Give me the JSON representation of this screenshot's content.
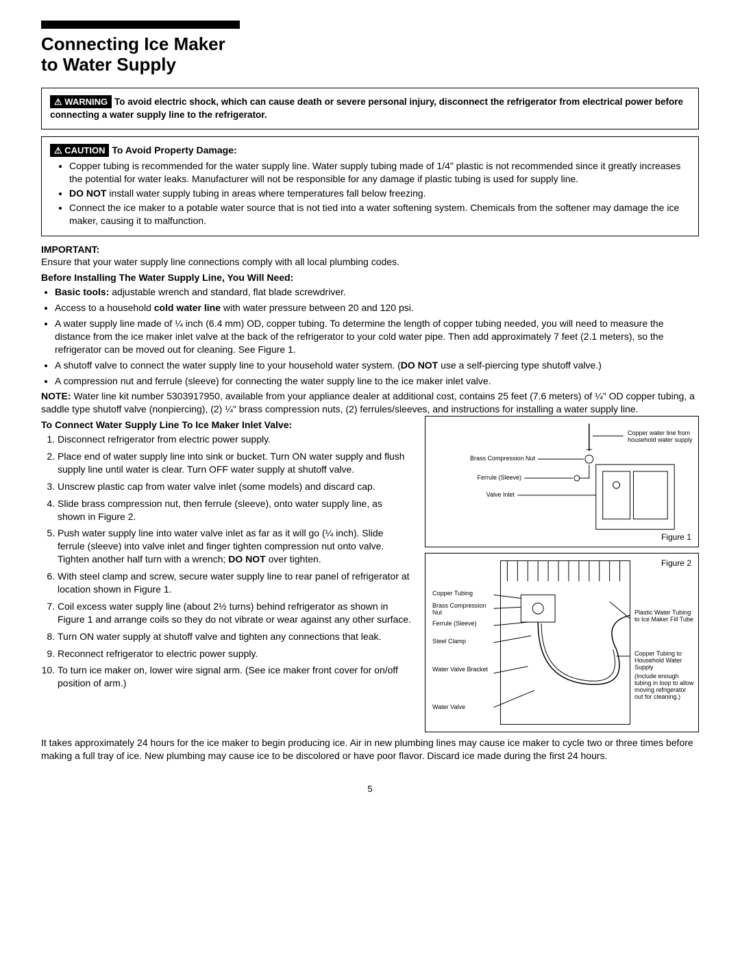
{
  "page_number": "5",
  "title_line1": "Connecting Ice Maker",
  "title_line2": "to Water Supply",
  "warning_badge": "⚠ WARNING",
  "warning_text": "To avoid electric shock, which can cause death or severe personal injury, disconnect the refrigerator from electrical power before connecting a water supply line to the refrigerator.",
  "caution_badge": "⚠ CAUTION",
  "caution_title": "To Avoid Property Damage:",
  "caution_items": [
    "Copper tubing is recommended for the water supply line. Water supply tubing made of 1/4\" plastic is not recommended since it greatly increases the potential for water leaks. Manufacturer will not be responsible for any damage if plastic tubing is used for supply line.",
    "<b>DO NOT</b> install water supply tubing in areas where temperatures fall below freezing.",
    "Connect the ice maker to a potable water source that is not tied into a water softening system. Chemicals from the softener may damage the ice maker, causing it to malfunction."
  ],
  "important_label": "IMPORTANT:",
  "important_text": "Ensure that your water supply line connections comply with all local plumbing codes.",
  "before_label": "Before Installing The Water Supply Line, You Will Need:",
  "before_items": [
    "<b>Basic tools:</b> adjustable wrench and standard, flat blade screwdriver.",
    "Access to a household <b>cold water line</b> with water pressure between 20 and 120 psi.",
    "A water supply line made of ¼ inch (6.4 mm) OD, copper tubing. To determine the length of copper tubing needed, you will need to measure the distance from the ice maker inlet valve at the back of the refrigerator to your cold water pipe. Then add approximately 7 feet (2.1 meters), so the refrigerator can be moved out for cleaning. See Figure 1.",
    "A shutoff valve to connect the water supply line to your household water system. (<b>DO NOT</b> use a self-piercing type shutoff valve.)",
    "A compression nut and ferrule (sleeve) for connecting the water supply line to the ice maker inlet valve."
  ],
  "note_text": "<b>NOTE:</b> Water line kit number 5303917950, available from your appliance dealer at additional cost, contains 25 feet (7.6 meters) of ¼\" OD copper tubing, a saddle type shutoff valve (nonpiercing), (2) ¼\" brass compression nuts, (2) ferrules/sleeves, and instructions for installing a water supply line.",
  "connect_label": "To Connect Water Supply Line To Ice Maker Inlet Valve:",
  "steps": [
    "Disconnect refrigerator from electric power supply.",
    "Place end of water supply line into sink or bucket. Turn ON water supply and flush supply line until water is clear. Turn OFF water supply at shutoff valve.",
    "Unscrew plastic cap from water valve inlet (some models) and discard cap.",
    "Slide brass compression nut, then ferrule (sleeve), onto water supply line, as shown in Figure 2.",
    "Push water supply line into water valve inlet as far as it will go (¼ inch). Slide ferrule (sleeve) into valve inlet and finger tighten compression nut onto valve. Tighten another half turn with a wrench; <b>DO NOT</b> over tighten.",
    "With steel clamp and screw, secure water supply line to rear panel of refrigerator at location shown in Figure 1.",
    "Coil excess water supply line (about 2½ turns) behind refrigerator as shown in Figure 1 and arrange coils so they do not vibrate or wear against any other surface.",
    "Turn ON water supply at shutoff valve and tighten any connections that leak.",
    "Reconnect refrigerator to electric power supply.",
    "To turn ice maker on, lower wire signal arm. (See ice maker front cover for on/off position of arm.)"
  ],
  "closing_text": "It takes approximately 24 hours for the ice maker to begin producing ice. Air in new plumbing lines may cause ice maker to cycle two or three times before making a full tray of ice. New plumbing may cause ice to be discolored or have poor flavor. Discard ice made during the first 24 hours.",
  "fig1_caption": "Figure 1",
  "fig2_caption": "Figure 2",
  "fig1_labels": {
    "copper_line": "Copper water line from household water supply",
    "brass_nut": "Brass Compression Nut",
    "ferrule": "Ferrule (Sleeve)",
    "valve_inlet": "Valve Inlet"
  },
  "fig2_labels": {
    "copper_tubing": "Copper Tubing",
    "brass_nut": "Brass Compression Nut",
    "ferrule": "Ferrule (Sleeve)",
    "steel_clamp": "Steel Clamp",
    "valve_bracket": "Water Valve Bracket",
    "water_valve": "Water Valve",
    "plastic_tubing": "Plastic Water Tubing to Ice Maker Fill Tube",
    "copper_to_house": "Copper Tubing to Household Water Supply",
    "include_note": "(Include enough tubing in loop to allow moving refrigerator out for cleaning.)"
  }
}
